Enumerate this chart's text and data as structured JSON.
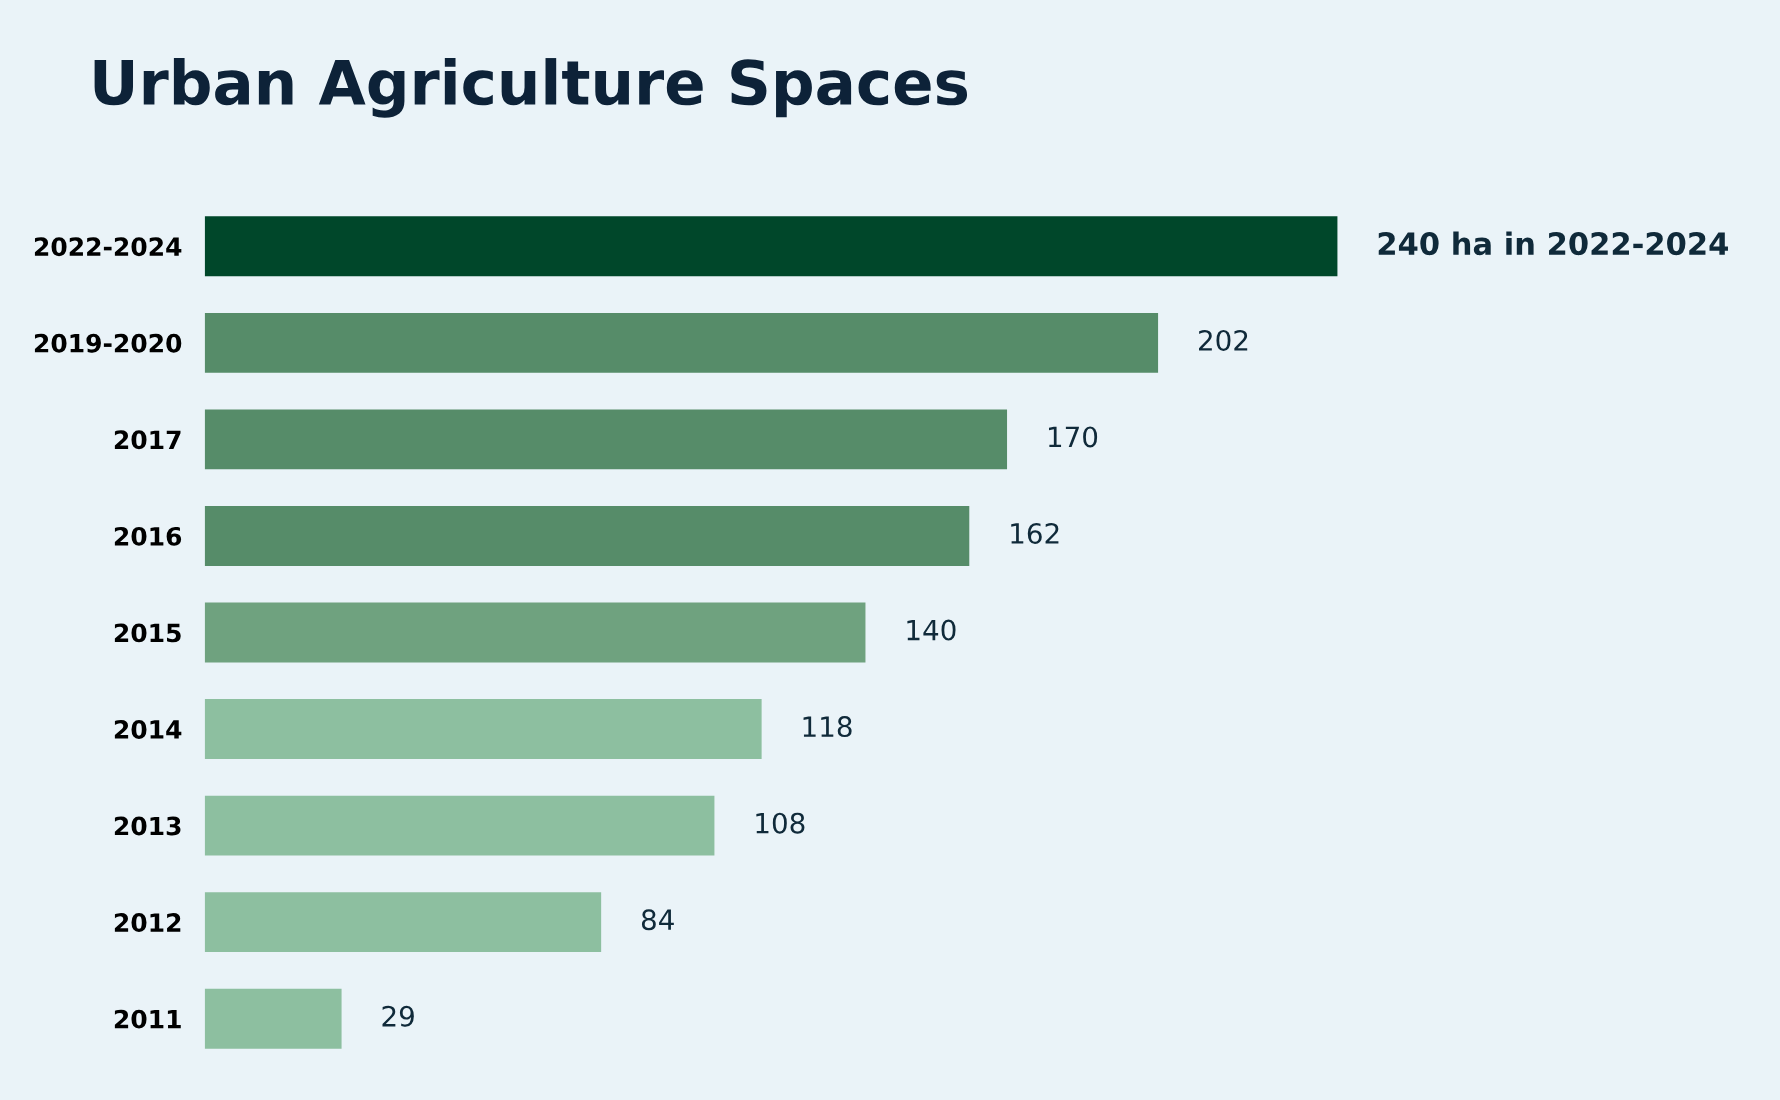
{
  "chart_data": {
    "type": "bar",
    "orientation": "horizontal",
    "title": "Urban Agriculture Spaces",
    "categories": [
      "2022-2024",
      "2019-2020",
      "2017",
      "2016",
      "2015",
      "2014",
      "2013",
      "2012",
      "2011"
    ],
    "values": [
      240,
      202,
      170,
      162,
      140,
      118,
      108,
      84,
      29
    ],
    "colors": [
      "#00472a",
      "#568c69",
      "#568c69",
      "#568c69",
      "#6fa27f",
      "#8dbfa0",
      "#8dbfa0",
      "#8dbfa0",
      "#8dbfa0"
    ],
    "value_labels": [
      "240 ha in 2022-2024",
      "202",
      "170",
      "162",
      "140",
      "118",
      "108",
      "84",
      "29"
    ],
    "grid": false,
    "legend": false
  }
}
